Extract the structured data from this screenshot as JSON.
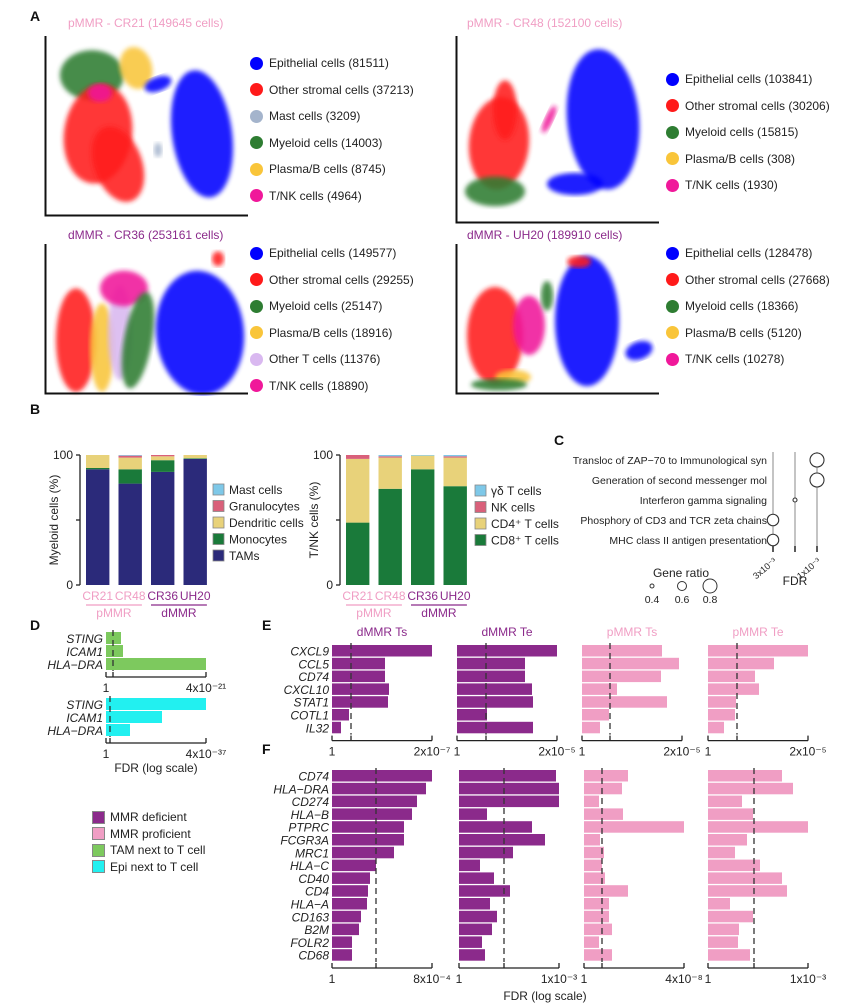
{
  "figure": {
    "panel_labels": {
      "A": "A",
      "B": "B",
      "C": "C",
      "D": "D",
      "E": "E",
      "F": "F"
    },
    "colors": {
      "epithelial": "#0000ff",
      "stromal": "#ff1a1a",
      "mast": "#a4b4cc",
      "myeloid": "#2e7d32",
      "plasma": "#f9c53a",
      "other_t": "#d9b8f0",
      "tnk": "#f0189a",
      "dmmr": "#8b2a8b",
      "pmmr": "#f09ec4",
      "tam_next": "#7dc95e",
      "epi_next": "#22f0f0",
      "navy": "#2b2a7a",
      "green": "#1a7a3a",
      "tan": "#e8d27a",
      "rose": "#d9607a",
      "sky": "#7ec8e8"
    }
  },
  "panel_a": {
    "umaps": [
      {
        "title": "pMMR - CR21 (149645 cells)",
        "group": "pmmr",
        "legend": [
          {
            "label": "Epithelial cells (81511)",
            "color": "epithelial"
          },
          {
            "label": "Other stromal cells (37213)",
            "color": "stromal"
          },
          {
            "label": "Mast cells (3209)",
            "color": "mast"
          },
          {
            "label": "Myeloid cells (14003)",
            "color": "myeloid"
          },
          {
            "label": "Plasma/B cells (8745)",
            "color": "plasma"
          },
          {
            "label": "T/NK cells (4964)",
            "color": "tnk"
          }
        ]
      },
      {
        "title": "pMMR - CR48 (152100 cells)",
        "group": "pmmr",
        "legend": [
          {
            "label": "Epithelial cells (103841)",
            "color": "epithelial"
          },
          {
            "label": "Other stromal cells (30206)",
            "color": "stromal"
          },
          {
            "label": "Myeloid cells (15815)",
            "color": "myeloid"
          },
          {
            "label": "Plasma/B cells (308)",
            "color": "plasma"
          },
          {
            "label": "T/NK cells (1930)",
            "color": "tnk"
          }
        ]
      },
      {
        "title": "dMMR - CR36 (253161 cells)",
        "group": "dmmr",
        "legend": [
          {
            "label": "Epithelial cells (149577)",
            "color": "epithelial"
          },
          {
            "label": "Other stromal cells (29255)",
            "color": "stromal"
          },
          {
            "label": "Myeloid cells (25147)",
            "color": "myeloid"
          },
          {
            "label": "Plasma/B cells (18916)",
            "color": "plasma"
          },
          {
            "label": "Other T cells (11376)",
            "color": "other_t"
          },
          {
            "label": "T/NK cells (18890)",
            "color": "tnk"
          }
        ]
      },
      {
        "title": "dMMR - UH20 (189910 cells)",
        "group": "dmmr",
        "legend": [
          {
            "label": "Epithelial cells (128478)",
            "color": "epithelial"
          },
          {
            "label": "Other stromal cells (27668)",
            "color": "stromal"
          },
          {
            "label": "Myeloid cells (18366)",
            "color": "myeloid"
          },
          {
            "label": "Plasma/B cells (5120)",
            "color": "plasma"
          },
          {
            "label": "T/NK cells (10278)",
            "color": "tnk"
          }
        ]
      }
    ]
  },
  "chart_data": [
    {
      "id": "B-myeloid",
      "type": "bar",
      "stacked": true,
      "ylabel": "Myeloid cells (%)",
      "ylim": [
        0,
        100
      ],
      "yticks": [
        "0",
        "100"
      ],
      "categories": [
        "CR21",
        "CR48",
        "CR36",
        "UH20"
      ],
      "category_groups": [
        {
          "label": "pMMR",
          "members": [
            "CR21",
            "CR48"
          ],
          "color": "pmmr"
        },
        {
          "label": "dMMR",
          "members": [
            "CR36",
            "UH20"
          ],
          "color": "dmmr"
        }
      ],
      "series": [
        {
          "name": "TAMs",
          "color": "navy",
          "values": [
            89,
            78,
            87,
            97
          ]
        },
        {
          "name": "Monocytes",
          "color": "green",
          "values": [
            1,
            11,
            9,
            0.5
          ]
        },
        {
          "name": "Dendritic cells",
          "color": "tan",
          "values": [
            10,
            9,
            3,
            2.5
          ]
        },
        {
          "name": "Granulocytes",
          "color": "rose",
          "values": [
            0,
            1.5,
            1,
            0
          ]
        },
        {
          "name": "Mast cells",
          "color": "sky",
          "values": [
            0,
            0.5,
            0,
            0
          ]
        }
      ],
      "legend_order": [
        "Mast cells",
        "Granulocytes",
        "Dendritic cells",
        "Monocytes",
        "TAMs"
      ]
    },
    {
      "id": "B-tnk",
      "type": "bar",
      "stacked": true,
      "ylabel": "T/NK cells (%)",
      "ylim": [
        0,
        100
      ],
      "yticks": [
        "0",
        "100"
      ],
      "categories": [
        "CR21",
        "CR48",
        "CR36",
        "UH20"
      ],
      "category_groups": [
        {
          "label": "pMMR",
          "members": [
            "CR21",
            "CR48"
          ],
          "color": "pmmr"
        },
        {
          "label": "dMMR",
          "members": [
            "CR36",
            "UH20"
          ],
          "color": "dmmr"
        }
      ],
      "series": [
        {
          "name": "CD8⁺ T cells",
          "color": "green",
          "values": [
            48,
            74,
            89,
            76
          ]
        },
        {
          "name": "CD4⁺ T cells",
          "color": "tan",
          "values": [
            49,
            24,
            10.5,
            22
          ]
        },
        {
          "name": "NK cells",
          "color": "rose",
          "values": [
            3,
            1,
            0,
            1
          ]
        },
        {
          "name": "γδ T cells",
          "color": "sky",
          "values": [
            0,
            1,
            0.5,
            1
          ]
        }
      ],
      "legend_order": [
        "γδ T cells",
        "NK cells",
        "CD4⁺ T cells",
        "CD8⁺ T cells"
      ]
    },
    {
      "id": "C-pathways",
      "type": "scatter",
      "terms": [
        "Transloc of ZAP−70 to Immunological syn",
        "Generation of second messenger mol",
        "Interferon gamma signaling",
        "Phosphory of CD3 and TCR zeta chains",
        "MHC class II antigen presentation"
      ],
      "fdr_tick_labels": [
        "3x10⁻³",
        "1x10⁻³"
      ],
      "xlabel": "FDR",
      "points": [
        {
          "term": 0,
          "fdr_column": 3,
          "gene_ratio": 0.8
        },
        {
          "term": 1,
          "fdr_column": 3,
          "gene_ratio": 0.8
        },
        {
          "term": 2,
          "fdr_column": 2,
          "gene_ratio": 0.4
        },
        {
          "term": 3,
          "fdr_column": 1,
          "gene_ratio": 0.7
        },
        {
          "term": 4,
          "fdr_column": 1,
          "gene_ratio": 0.7
        }
      ],
      "size_legend": {
        "title": "Gene ratio",
        "values": [
          0.4,
          0.6,
          0.8
        ],
        "labels": [
          "0.4",
          "0.6",
          "0.8"
        ]
      }
    },
    {
      "id": "D-spatial",
      "type": "bar",
      "orientation": "horizontal",
      "xlabel": "FDR (log scale)",
      "groups": [
        {
          "name": "TAM next to T cell",
          "color": "tam_next",
          "genes": [
            "STING",
            "ICAM1",
            "HLA−DRA"
          ],
          "values": [
            0.15,
            0.17,
            1.0
          ],
          "threshold": 0.07,
          "tick_left": "1",
          "tick_right": "4x10⁻²¹"
        },
        {
          "name": "Epi next to T cell",
          "color": "epi_next",
          "genes": [
            "STING",
            "ICAM1",
            "HLA−DRA"
          ],
          "values": [
            1.0,
            0.56,
            0.24
          ],
          "threshold": 0.04,
          "tick_left": "1",
          "tick_right": "4x10⁻³⁷"
        }
      ]
    },
    {
      "id": "E-genes",
      "type": "bar",
      "orientation": "horizontal",
      "genes": [
        "CXCL9",
        "CCL5",
        "CD74",
        "CXCL10",
        "STAT1",
        "COTL1",
        "IL32"
      ],
      "panels": [
        {
          "title": "dMMR Ts",
          "color": "dmmr",
          "values": [
            1.0,
            0.53,
            0.53,
            0.57,
            0.56,
            0.17,
            0.09
          ],
          "threshold": 0.19,
          "tick_left": "1",
          "tick_right": "2x10⁻⁷"
        },
        {
          "title": "dMMR Te",
          "color": "dmmr",
          "values": [
            1.0,
            0.68,
            0.68,
            0.75,
            0.76,
            0.3,
            0.76
          ],
          "threshold": 0.29,
          "tick_left": "1",
          "tick_right": "2x10⁻⁵"
        },
        {
          "title": "pMMR Ts",
          "color": "pmmr",
          "values": [
            0.8,
            0.97,
            0.79,
            0.35,
            0.85,
            0.27,
            0.18
          ],
          "threshold": 0.28,
          "tick_left": "1",
          "tick_right": "2x10⁻⁵"
        },
        {
          "title": "pMMR Te",
          "color": "pmmr",
          "values": [
            1.0,
            0.66,
            0.47,
            0.51,
            0.28,
            0.27,
            0.16
          ],
          "threshold": 0.29,
          "tick_left": "1",
          "tick_right": "2x10⁻⁵"
        }
      ]
    },
    {
      "id": "F-genes",
      "type": "bar",
      "orientation": "horizontal",
      "xlabel": "FDR (log scale)",
      "genes": [
        "CD74",
        "HLA−DRA",
        "CD274",
        "HLA−B",
        "PTPRC",
        "FCGR3A",
        "MRC1",
        "HLA−C",
        "CD40",
        "CD4",
        "HLA−A",
        "CD163",
        "B2M",
        "FOLR2",
        "CD68"
      ],
      "panels": [
        {
          "color": "dmmr",
          "values": [
            1.0,
            0.94,
            0.85,
            0.8,
            0.72,
            0.72,
            0.62,
            0.44,
            0.38,
            0.36,
            0.35,
            0.29,
            0.27,
            0.2,
            0.2
          ],
          "threshold": 0.44,
          "tick_left": "1",
          "tick_right": "8x10⁻⁴"
        },
        {
          "color": "dmmr",
          "values": [
            0.97,
            1.0,
            1.0,
            0.28,
            0.73,
            0.86,
            0.54,
            0.21,
            0.35,
            0.51,
            0.31,
            0.38,
            0.33,
            0.23,
            0.26
          ],
          "threshold": 0.45,
          "tick_left": "1",
          "tick_right": "1x10⁻³"
        },
        {
          "color": "pmmr",
          "values": [
            0.44,
            0.38,
            0.15,
            0.39,
            1.0,
            0.16,
            0.2,
            0.18,
            0.21,
            0.44,
            0.25,
            0.25,
            0.28,
            0.15,
            0.28
          ],
          "threshold": 0.18,
          "tick_left": "1",
          "tick_right": "4x10⁻⁸"
        },
        {
          "color": "pmmr",
          "values": [
            0.74,
            0.85,
            0.34,
            0.45,
            1.0,
            0.39,
            0.27,
            0.52,
            0.74,
            0.79,
            0.22,
            0.45,
            0.31,
            0.3,
            0.42
          ],
          "threshold": 0.46,
          "tick_left": "1",
          "tick_right": "1x10⁻³"
        }
      ]
    }
  ],
  "legend_df": [
    {
      "label": "MMR deficient",
      "color": "dmmr"
    },
    {
      "label": "MMR proficient",
      "color": "pmmr"
    },
    {
      "label": "TAM next to T cell",
      "color": "tam_next"
    },
    {
      "label": "Epi next to T cell",
      "color": "epi_next"
    }
  ]
}
